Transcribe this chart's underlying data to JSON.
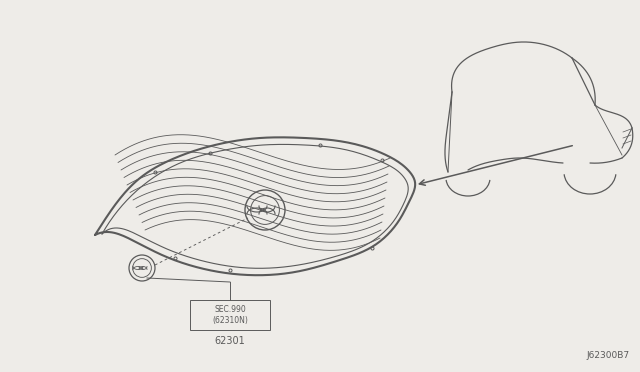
{
  "bg_color": "#eeece8",
  "line_color": "#5a5a5a",
  "diagram_id": "J62300B7",
  "grille_label": "62301",
  "sec_label": "SEC.990\n(62310N)"
}
